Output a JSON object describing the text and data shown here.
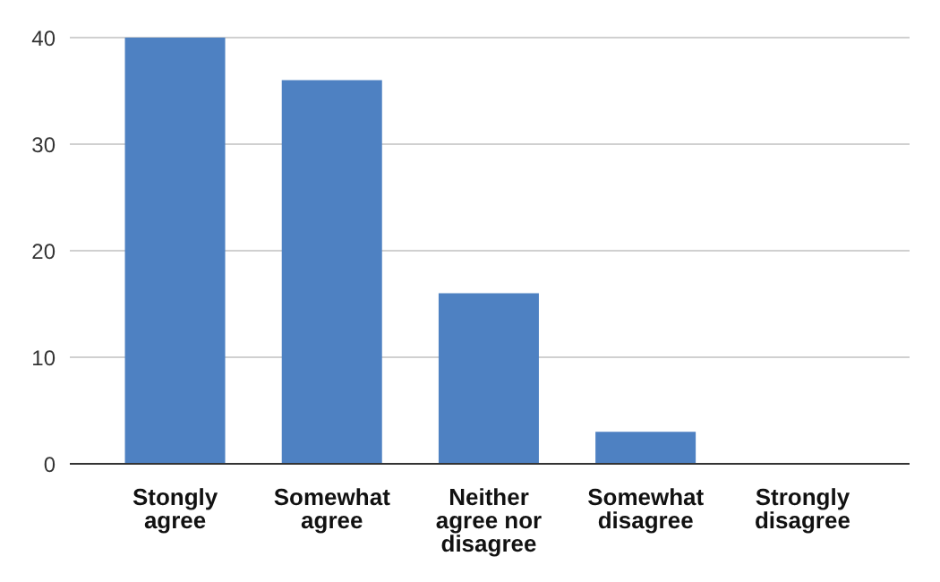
{
  "chart_data": {
    "type": "bar",
    "categories": [
      "Stongly agree",
      "Somewhat agree",
      "Neither agree nor disagree",
      "Somewhat disagree",
      "Strongly disagree"
    ],
    "values": [
      40,
      36,
      16,
      3,
      0
    ],
    "color": "#4e81c2",
    "ylim": [
      0,
      40
    ],
    "yticks": [
      0,
      10,
      20,
      30,
      40
    ],
    "grid": "y"
  }
}
